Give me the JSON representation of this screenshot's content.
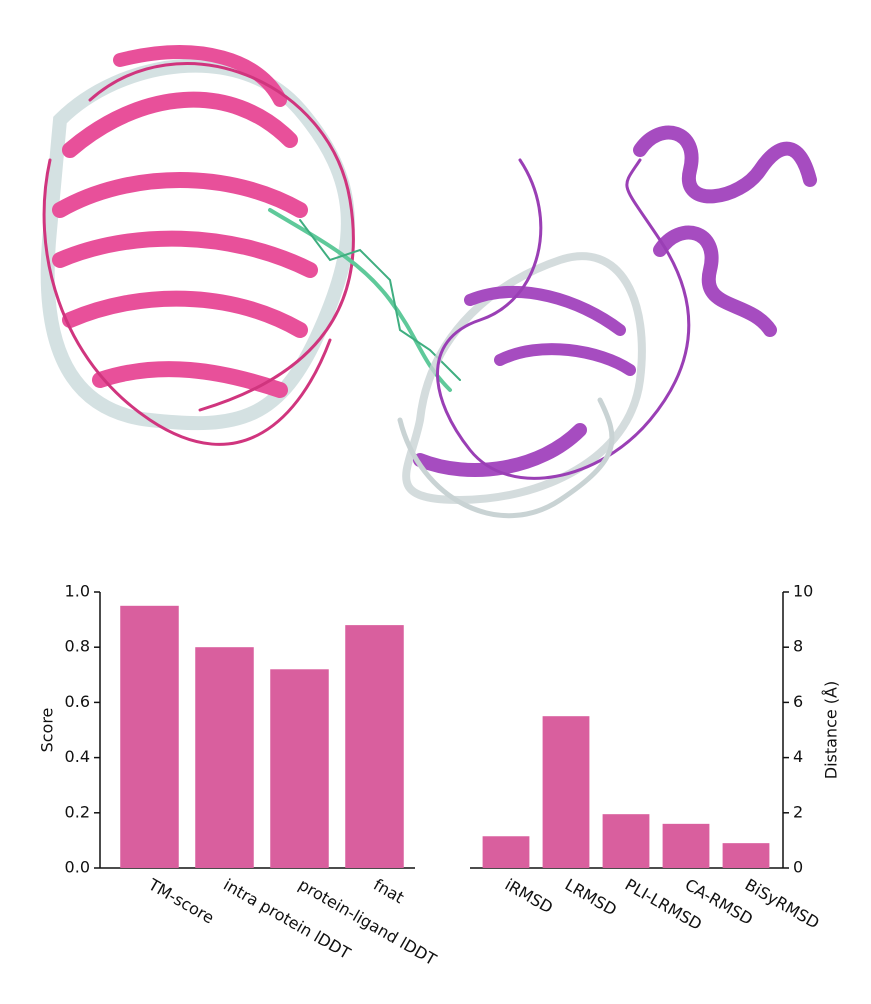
{
  "chart_data": [
    {
      "type": "bar",
      "ylabel": "Score",
      "y_axis_position": "left",
      "color": "#d95f9e",
      "categories": [
        "TM-score",
        "intra protein lDDT",
        "protein-ligand lDDT",
        "fnat"
      ],
      "values": [
        0.95,
        0.8,
        0.72,
        0.88
      ],
      "ylim": [
        0,
        1
      ],
      "yticks": [
        {
          "value": 0,
          "label": "0.0"
        },
        0.2,
        0.4,
        0.6,
        0.8,
        {
          "value": 1,
          "label": "1.0"
        }
      ]
    },
    {
      "type": "bar",
      "ylabel": "Distance (Å)",
      "y_axis_position": "right",
      "color": "#d95f9e",
      "categories": [
        "iRMSD",
        "LRMSD",
        "PLI-LRMSD",
        "CA-RMSD",
        "BiSyRMSD"
      ],
      "values": [
        1.15,
        5.5,
        1.95,
        1.6,
        0.9
      ],
      "ylim": [
        0,
        10
      ],
      "yticks": [
        0,
        2,
        4,
        6,
        8,
        10
      ]
    }
  ]
}
